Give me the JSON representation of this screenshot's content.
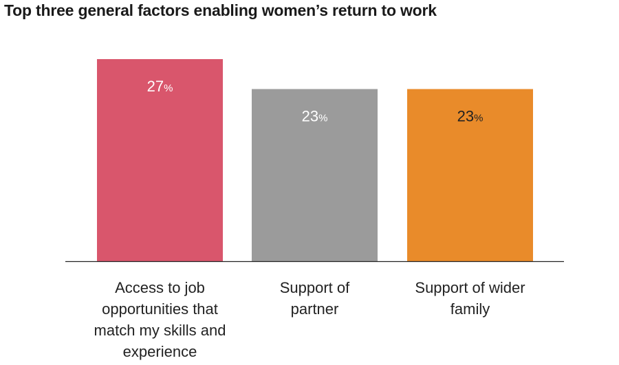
{
  "chart_data": {
    "type": "bar",
    "title": "Top three general factors enabling women’s return to work",
    "categories": [
      "Access to job opportunities that match my skills and experience",
      "Support of partner",
      "Support of wider family"
    ],
    "category_lines": [
      [
        "Access to job",
        "opportunities that",
        "match my skills and",
        "experience"
      ],
      [
        "Support of",
        "partner"
      ],
      [
        "Support of wider",
        "family"
      ]
    ],
    "values": [
      27,
      23,
      23
    ],
    "value_unit": "%",
    "colors": [
      "#d9566c",
      "#9b9b9b",
      "#e98b2a"
    ],
    "value_label_colors": [
      "#ffffff",
      "#ffffff",
      "#222222"
    ],
    "ylim": [
      0,
      30
    ],
    "grid": false,
    "legend": "none",
    "xlabel": "",
    "ylabel": ""
  }
}
